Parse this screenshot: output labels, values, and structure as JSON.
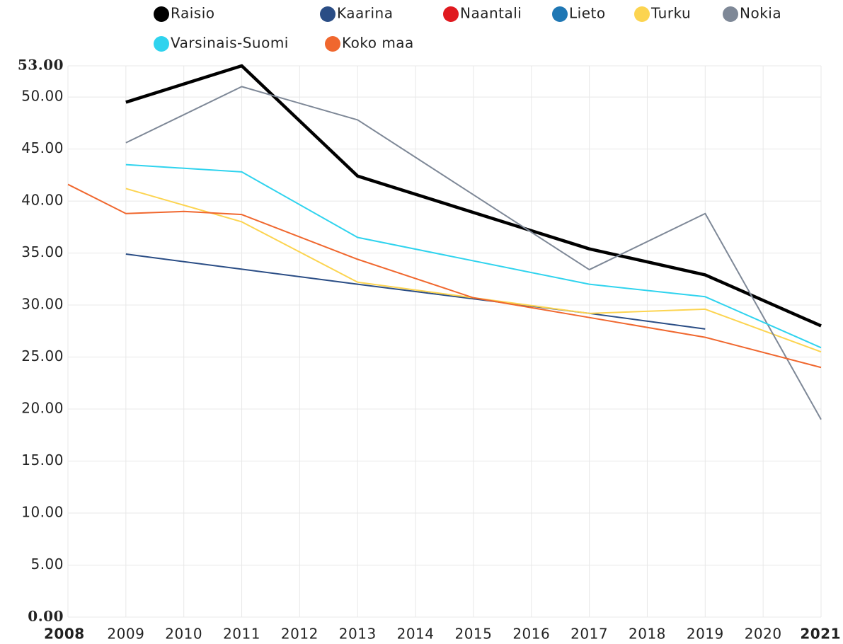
{
  "chart_data": {
    "type": "line",
    "xlim": [
      2008,
      2021
    ],
    "xticks": [
      2008,
      2009,
      2010,
      2011,
      2012,
      2013,
      2014,
      2015,
      2016,
      2017,
      2018,
      2019,
      2020,
      2021
    ],
    "ylim": [
      0,
      53
    ],
    "yticks": [
      {
        "value": 0,
        "label": "0.00"
      },
      {
        "value": 5,
        "label": "5.00"
      },
      {
        "value": 10,
        "label": "10.00"
      },
      {
        "value": 15,
        "label": "15.00"
      },
      {
        "value": 20,
        "label": "20.00"
      },
      {
        "value": 25,
        "label": "25.00"
      },
      {
        "value": 30,
        "label": "30.00"
      },
      {
        "value": 35,
        "label": "35.00"
      },
      {
        "value": 40,
        "label": "40.00"
      },
      {
        "value": 45,
        "label": "45.00"
      },
      {
        "value": 50,
        "label": "50.00"
      },
      {
        "value": 53,
        "label": "53.00"
      }
    ],
    "grid": true,
    "legend": "top",
    "series": [
      {
        "name": "Raisio",
        "color": "#000000",
        "x": [
          2009,
          2011,
          2013,
          2017,
          2019,
          2021
        ],
        "values": [
          49.5,
          53.0,
          42.4,
          35.4,
          32.9,
          28.0
        ]
      },
      {
        "name": "Kaarina",
        "color": "#2a4d85",
        "x": [
          2009,
          2013,
          2015,
          2017,
          2019
        ],
        "values": [
          34.9,
          32.0,
          30.6,
          29.2,
          27.7
        ]
      },
      {
        "name": "Naantali",
        "color": "#e0191f",
        "x": [],
        "values": []
      },
      {
        "name": "Lieto",
        "color": "#1f77b4",
        "x": [],
        "values": []
      },
      {
        "name": "Turku",
        "color": "#fcd450",
        "x": [
          2009,
          2011,
          2013,
          2015,
          2017,
          2019,
          2021
        ],
        "values": [
          41.2,
          38.0,
          32.2,
          30.7,
          29.2,
          29.6,
          25.5
        ]
      },
      {
        "name": "Nokia",
        "color": "#7e8897",
        "x": [
          2009,
          2011,
          2013,
          2017,
          2019,
          2021
        ],
        "values": [
          45.6,
          51.0,
          47.8,
          33.4,
          38.8,
          19.0
        ]
      },
      {
        "name": "Varsinais-Suomi",
        "color": "#2fd3ee",
        "x": [
          2009,
          2011,
          2013,
          2017,
          2019,
          2021
        ],
        "values": [
          43.5,
          42.8,
          36.5,
          32.0,
          30.8,
          25.9
        ]
      },
      {
        "name": "Koko maa",
        "color": "#f0672e",
        "x": [
          2008,
          2009,
          2010,
          2011,
          2013,
          2015,
          2017,
          2019,
          2021
        ],
        "values": [
          41.6,
          38.8,
          39.0,
          38.7,
          34.4,
          30.7,
          28.8,
          26.9,
          24.0
        ]
      }
    ]
  }
}
